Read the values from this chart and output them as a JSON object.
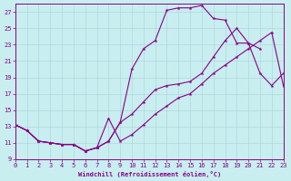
{
  "xlabel": "Windchill (Refroidissement éolien,°C)",
  "bg_color": "#c8eef0",
  "grid_color": "#b0d8dc",
  "line_color": "#880088",
  "xlim": [
    0,
    23
  ],
  "ylim": [
    9,
    28
  ],
  "xticks": [
    0,
    1,
    2,
    3,
    4,
    5,
    6,
    7,
    8,
    9,
    10,
    11,
    12,
    13,
    14,
    15,
    16,
    17,
    18,
    19,
    20,
    21,
    22,
    23
  ],
  "yticks": [
    9,
    11,
    13,
    15,
    17,
    19,
    21,
    23,
    25,
    27
  ],
  "curve_upper_x": [
    0,
    1,
    2,
    3,
    4,
    5,
    6,
    7,
    8,
    9,
    10,
    11,
    12,
    13,
    14,
    15,
    16,
    17,
    18,
    19,
    20,
    21
  ],
  "curve_upper_y": [
    13.2,
    12.5,
    11.2,
    11.0,
    10.8,
    10.8,
    10.0,
    10.4,
    11.2,
    13.5,
    20.0,
    22.5,
    23.5,
    27.2,
    27.5,
    27.5,
    27.8,
    26.2,
    26.0,
    23.2,
    23.2,
    22.5
  ],
  "curve_mid_x": [
    0,
    1,
    2,
    3,
    4,
    5,
    6,
    7,
    8,
    9,
    10,
    11,
    12,
    13,
    14,
    15,
    16,
    17,
    18,
    19,
    20,
    21,
    22,
    23
  ],
  "curve_mid_y": [
    13.2,
    12.5,
    11.2,
    11.0,
    10.8,
    10.8,
    10.0,
    10.4,
    11.2,
    13.5,
    14.5,
    16.0,
    17.5,
    18.0,
    18.2,
    18.5,
    19.5,
    21.5,
    23.5,
    25.0,
    23.2,
    19.5,
    18.0,
    19.5
  ],
  "curve_low_x": [
    0,
    1,
    2,
    3,
    4,
    5,
    6,
    7,
    8,
    9,
    10,
    11,
    12,
    13,
    14,
    15,
    16,
    17,
    18,
    19,
    20,
    21,
    22,
    23
  ],
  "curve_low_y": [
    13.2,
    12.5,
    11.2,
    11.0,
    10.8,
    10.8,
    10.0,
    10.4,
    14.0,
    11.2,
    12.0,
    13.2,
    14.5,
    15.5,
    16.5,
    17.0,
    18.2,
    19.5,
    20.5,
    21.5,
    22.5,
    23.5,
    24.5,
    18.0
  ]
}
